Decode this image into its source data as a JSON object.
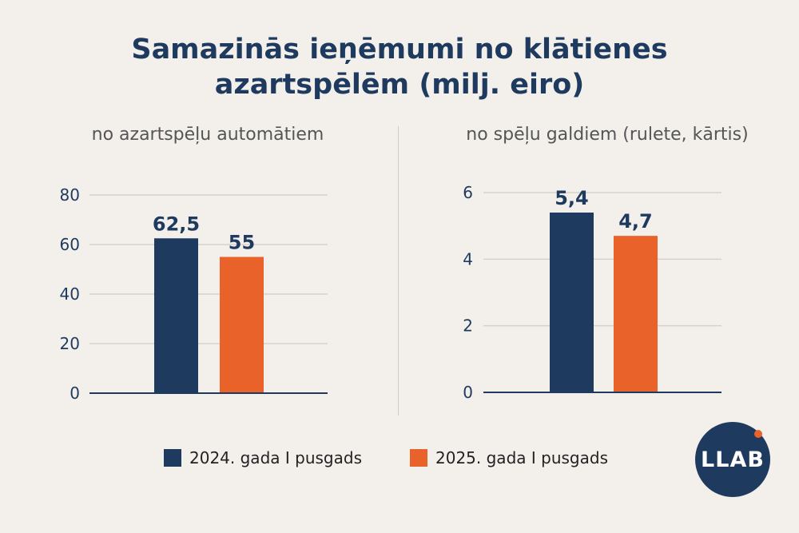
{
  "title_line1": "Samazinās ieņēmumi no klātienes",
  "title_line2": "azartspēlēm (milj. eiro)",
  "colors": {
    "series1": "#1e3a5f",
    "series2": "#e8622a",
    "grid": "#d6d1cb",
    "text": "#1e3a5f"
  },
  "chart_data": [
    {
      "type": "bar",
      "title": "no azartspēļu automātiem",
      "categories": [
        "2024. gada I pusgads",
        "2025. gada I pusgads"
      ],
      "values": [
        62.5,
        55
      ],
      "value_labels": [
        "62,5",
        "55"
      ],
      "ylim": [
        0,
        80
      ],
      "yticks": [
        "0",
        "20",
        "40",
        "60",
        "80"
      ],
      "ytick_values": [
        0,
        20,
        40,
        60,
        80
      ],
      "grid": true
    },
    {
      "type": "bar",
      "title": "no spēļu galdiem (rulete, kārtis)",
      "categories": [
        "2024. gada I pusgads",
        "2025. gada I pusgads"
      ],
      "values": [
        5.4,
        4.7
      ],
      "value_labels": [
        "5,4",
        "4,7"
      ],
      "ylim": [
        0,
        6
      ],
      "yticks": [
        "0",
        "2",
        "4",
        "6"
      ],
      "ytick_values": [
        0,
        2,
        4,
        6
      ],
      "grid": true
    }
  ],
  "legend": [
    {
      "label": "2024. gada I pusgads"
    },
    {
      "label": "2025. gada I pusgads"
    }
  ],
  "logo": {
    "text": "LLAB"
  }
}
